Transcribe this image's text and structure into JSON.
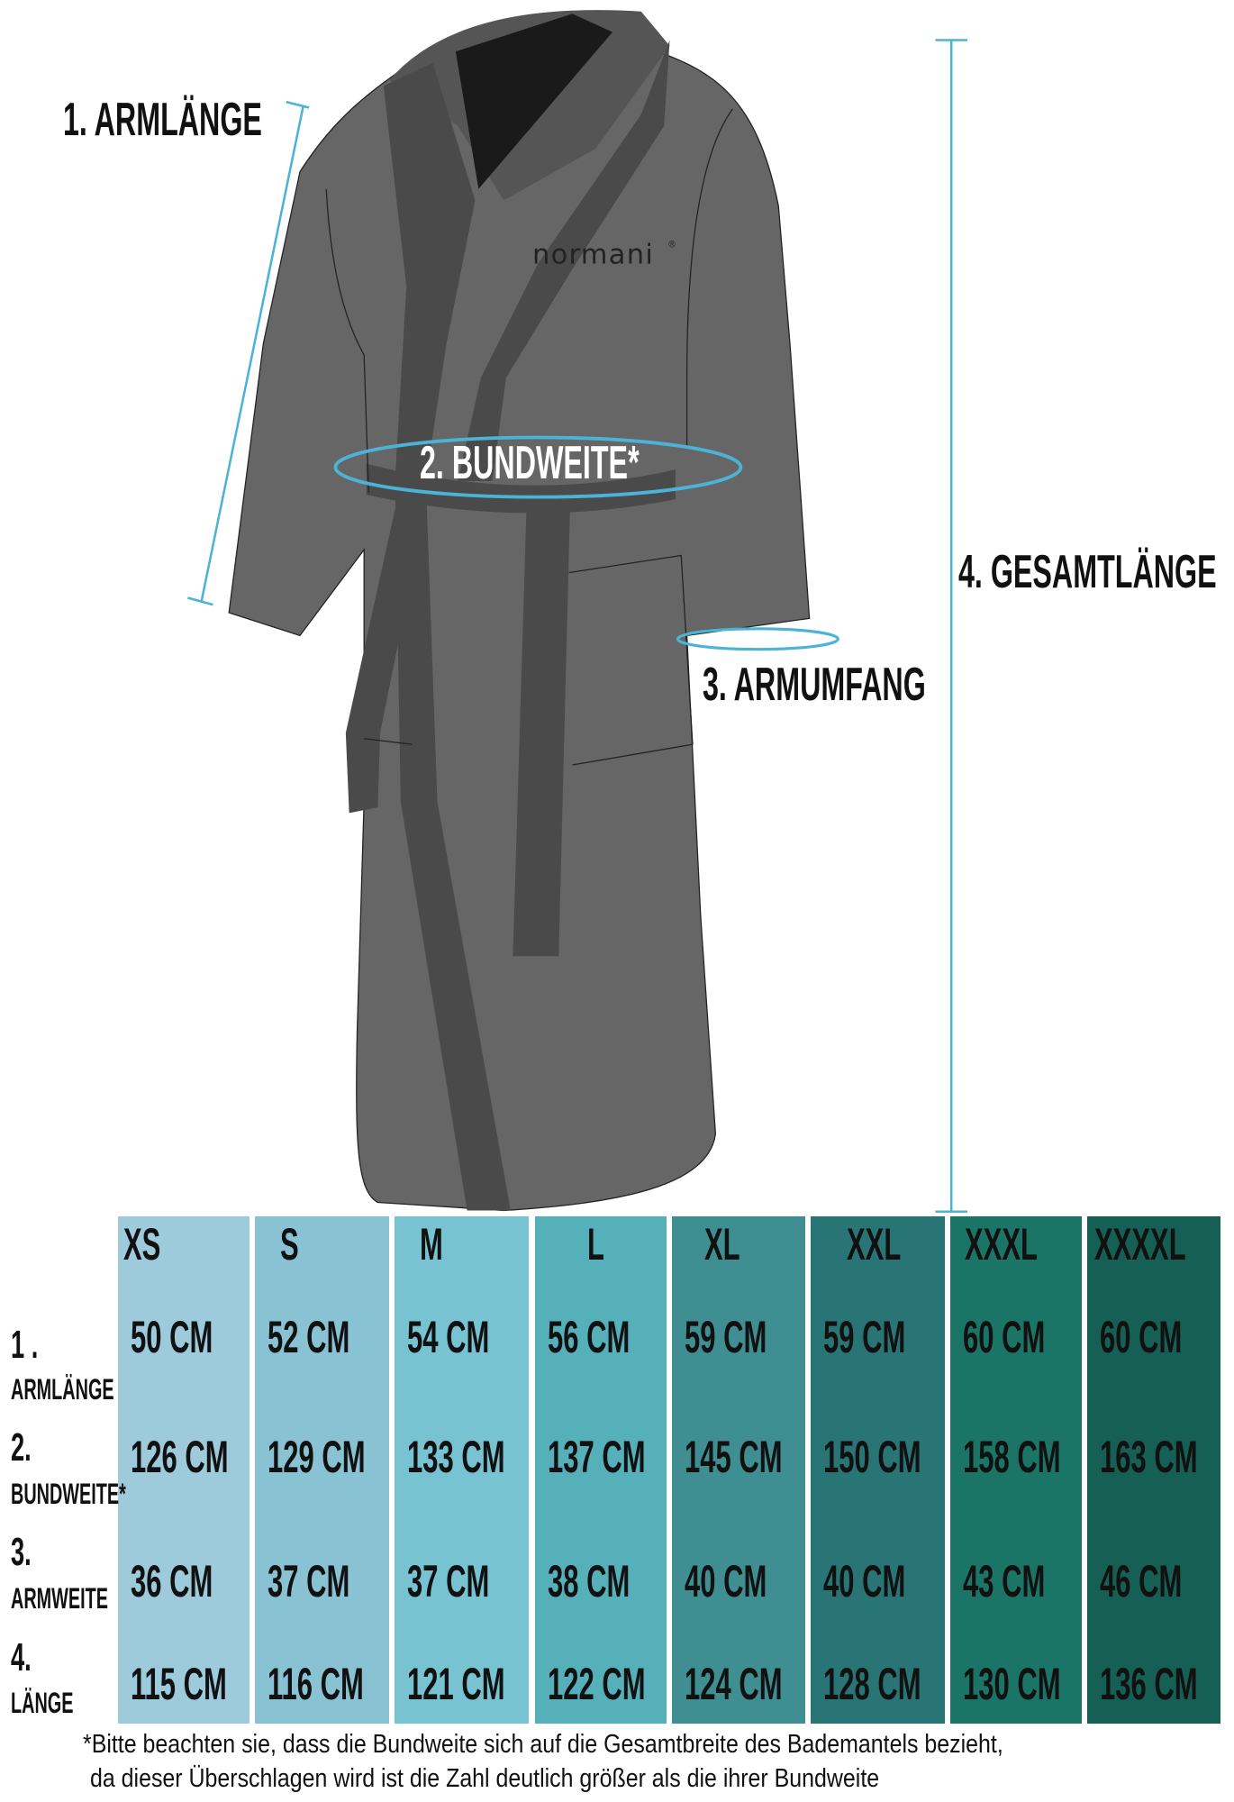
{
  "brand": "normani®",
  "measure_labels": {
    "arm_length": "1. ARMLÄNGE",
    "waist": "2. BUNDWEITE*",
    "arm_circumference": "3. ARMUMFANG",
    "total_length": "4. GESAMTLÄNGE"
  },
  "accent_color": "#4bb3d6",
  "size_table": {
    "sizes": [
      {
        "label": "XS",
        "color": "#9dcbdb",
        "values": [
          "50 CM",
          "126 CM",
          "36 CM",
          "115 CM"
        ]
      },
      {
        "label": "S",
        "color": "#89c3d3",
        "values": [
          "52 CM",
          "129 CM",
          "37 CM",
          "116 CM"
        ]
      },
      {
        "label": "M",
        "color": "#77c3d2",
        "values": [
          "54 CM",
          "133 CM",
          "37 CM",
          "121 CM"
        ]
      },
      {
        "label": "L",
        "color": "#56b0ba",
        "values": [
          "56 CM",
          "137 CM",
          "38 CM",
          "122 CM"
        ]
      },
      {
        "label": "XL",
        "color": "#3f8e92",
        "values": [
          "59 CM",
          "145 CM",
          "40 CM",
          "124 CM"
        ]
      },
      {
        "label": "XXL",
        "color": "#297474",
        "values": [
          "59 CM",
          "150 CM",
          "40 CM",
          "128 CM"
        ]
      },
      {
        "label": "XXXL",
        "color": "#1b7566",
        "values": [
          "60 CM",
          "158 CM",
          "43 CM",
          "130 CM"
        ]
      },
      {
        "label": "XXXXL",
        "color": "#155f54",
        "values": [
          "60 CM",
          "163 CM",
          "46 CM",
          "136 CM"
        ]
      }
    ],
    "rows": [
      {
        "num": "1 .",
        "name": "ARMLÄNGE"
      },
      {
        "num": "2.",
        "name": "BUNDWEITE*"
      },
      {
        "num": "3.",
        "name": "ARMWEITE"
      },
      {
        "num": "4.",
        "name": "LÄNGE"
      }
    ]
  },
  "footnote": {
    "line1": "*Bitte beachten sie, dass die Bundweite sich auf die Gesamtbreite des Bademantels bezieht,",
    "line2": "da dieser Überschlagen wird  ist die Zahl deutlich größer als die ihrer Bundweite"
  }
}
